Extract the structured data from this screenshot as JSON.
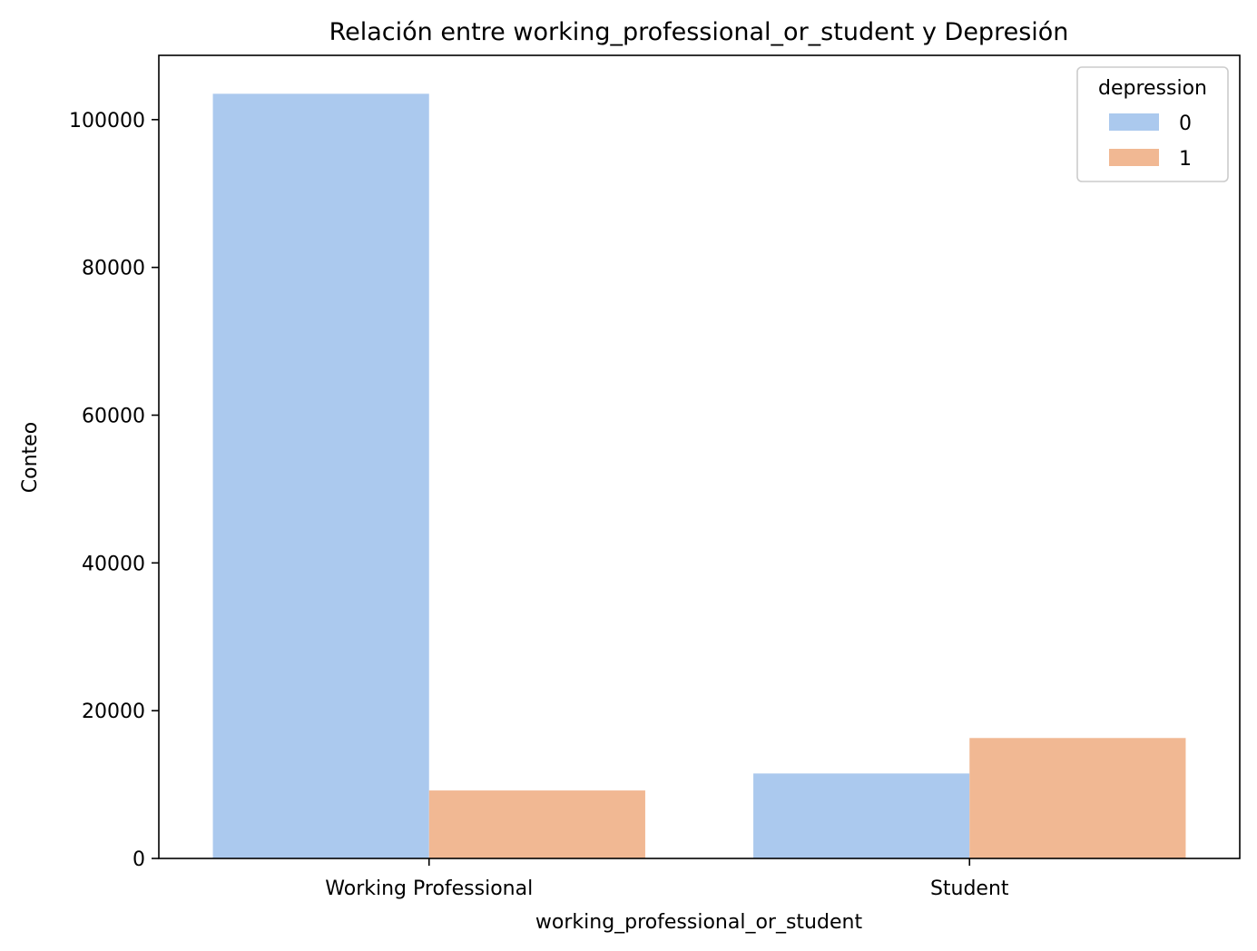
{
  "chart_data": {
    "type": "bar",
    "title": "Relación entre working_professional_or_student y Depresión",
    "xlabel": "working_professional_or_student",
    "ylabel": "Conteo",
    "categories": [
      "Working Professional",
      "Student"
    ],
    "series": [
      {
        "name": "0",
        "values": [
          103500,
          11500
        ],
        "color": "#abc9ee"
      },
      {
        "name": "1",
        "values": [
          9200,
          16300
        ],
        "color": "#f1b893"
      }
    ],
    "ylim": [
      0,
      108700
    ],
    "yticks": [
      0,
      20000,
      40000,
      60000,
      80000,
      100000
    ],
    "grid": false,
    "legend": {
      "title": "depression",
      "placement": "top-right"
    }
  }
}
